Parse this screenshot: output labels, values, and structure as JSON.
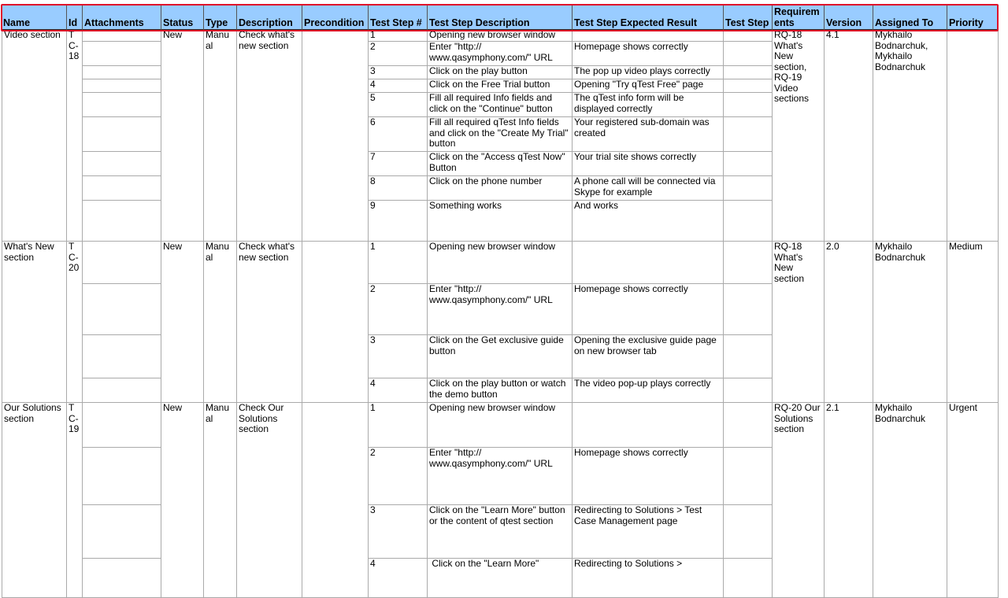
{
  "columns": [
    "Name",
    "Id",
    "Attachments",
    "Status",
    "Type",
    "Description",
    "Precondition",
    "Test Step #",
    "Test Step Description",
    "Test Step Expected Result",
    "Test Step",
    "Requirem ents",
    "Version",
    "Assigned To",
    "Priority"
  ],
  "test_cases": [
    {
      "name": "Video section",
      "id": "T C- 18",
      "status": "New",
      "type": "Manu al",
      "description": "Check what's new section",
      "precondition": "",
      "requirements": "RQ-18 What's New section, RQ-19 Video sections",
      "version": "4.1",
      "assigned_to": "Mykhailo Bodnarchuk, Mykhailo Bodnarchuk",
      "priority": "",
      "steps": [
        {
          "num": "1",
          "desc": "Opening new browser window",
          "expected": ""
        },
        {
          "num": "2",
          "desc": "Enter \"http://\nwww.qasymphony.com/\" URL",
          "expected": "Homepage shows correctly"
        },
        {
          "num": "3",
          "desc": "Click on the play button",
          "expected": "The pop up video plays correctly"
        },
        {
          "num": "4",
          "desc": "Click on the Free Trial button",
          "expected": "Opening \"Try qTest Free\" page"
        },
        {
          "num": "5",
          "desc": "Fill all required Info fields and click on the \"Continue\" button",
          "expected": "The qTest info form will be displayed correctly"
        },
        {
          "num": "6",
          "desc": "Fill all required qTest Info fields and click on the \"Create My Trial\" button",
          "expected": "Your registered sub-domain was created"
        },
        {
          "num": "7",
          "desc": "Click on the \"Access qTest Now\" Button",
          "expected": "Your trial site shows correctly"
        },
        {
          "num": "8",
          "desc": "Click on the phone number",
          "expected": "A phone call will be connected via Skype for example"
        },
        {
          "num": "9",
          "desc": "Something works",
          "expected": "And works"
        }
      ]
    },
    {
      "name": "What's New section",
      "id": "T C- 20",
      "status": "New",
      "type": "Manu al",
      "description": "Check what's new section",
      "precondition": "",
      "requirements": "RQ-18 What's New section",
      "version": "2.0",
      "assigned_to": "Mykhailo Bodnarchuk",
      "priority": "Medium",
      "steps": [
        {
          "num": "1",
          "desc": "Opening new browser window",
          "expected": ""
        },
        {
          "num": "2",
          "desc": "Enter \"http://\nwww.qasymphony.com/\" URL",
          "expected": "Homepage shows correctly"
        },
        {
          "num": "3",
          "desc": "Click on the Get exclusive guide button",
          "expected": "Opening the exclusive guide page on new browser tab"
        },
        {
          "num": "4",
          "desc": "Click on the play button or watch the demo button",
          "expected": "The video pop-up plays correctly"
        }
      ]
    },
    {
      "name": "Our Solutions section",
      "id": "T C- 19",
      "status": "New",
      "type": "Manu al",
      "description": "Check Our Solutions section",
      "precondition": "",
      "requirements": "RQ-20 Our Solutions section",
      "version": "2.1",
      "assigned_to": "Mykhailo Bodnarchuk",
      "priority": "Urgent",
      "steps": [
        {
          "num": "1",
          "desc": "Opening new browser window",
          "expected": ""
        },
        {
          "num": "2",
          "desc": "Enter \"http://\nwww.qasymphony.com/\" URL",
          "expected": "Homepage shows correctly"
        },
        {
          "num": "3",
          "desc": "Click on the \"Learn More\" button or the content of qtest section",
          "expected": "Redirecting to Solutions > Test Case Management page"
        },
        {
          "num": "4",
          "desc": " Click on the \"Learn More\"",
          "expected": "Redirecting to Solutions >"
        }
      ]
    }
  ],
  "colors": {
    "header_bg": "#99ccff",
    "selection": "#e0102a",
    "grid": "#aaaaaa"
  }
}
